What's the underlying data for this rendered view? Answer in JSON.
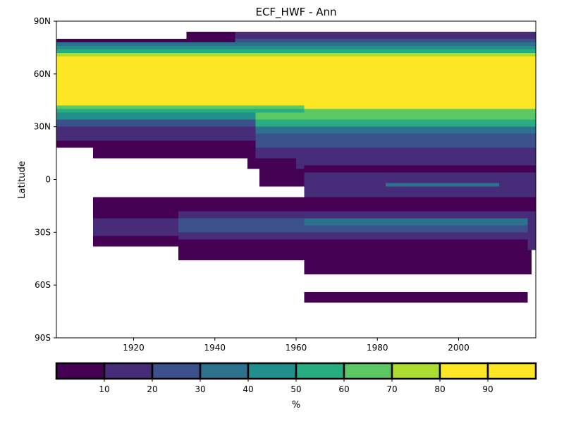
{
  "chart_data": {
    "type": "heatmap",
    "title": "ECF_HWF - Ann",
    "xlabel": "",
    "ylabel": "Latitude",
    "xlim": [
      1901,
      2019
    ],
    "ylim": [
      -90,
      90
    ],
    "x_ticks": [
      1920,
      1940,
      1960,
      1980,
      2000
    ],
    "x_tick_labels": [
      "1920",
      "1940",
      "1960",
      "1980",
      "2000"
    ],
    "y_ticks": [
      90,
      60,
      30,
      0,
      -30,
      -60,
      -90
    ],
    "y_tick_labels": [
      "90N",
      "60N",
      "30N",
      "0",
      "30S",
      "60S",
      "90S"
    ],
    "grid": false,
    "colorbar": {
      "label": "%",
      "range": [
        0,
        100
      ],
      "ticks": [
        10,
        20,
        30,
        40,
        50,
        60,
        70,
        80,
        90
      ],
      "tick_labels": [
        "10",
        "20",
        "30",
        "40",
        "50",
        "60",
        "70",
        "80",
        "90"
      ],
      "colors": [
        "#440154",
        "#472c7a",
        "#3b518b",
        "#2c718e",
        "#21908d",
        "#27ad81",
        "#5cc863",
        "#aadc32",
        "#fde725"
      ]
    },
    "cells": [
      {
        "x": [
          1901,
          2019
        ],
        "lat": [
          42,
          70
        ],
        "value": 95
      },
      {
        "x": [
          1901,
          2019
        ],
        "lat": [
          70,
          72
        ],
        "value": 75
      },
      {
        "x": [
          1901,
          2019
        ],
        "lat": [
          72,
          74
        ],
        "value": 55
      },
      {
        "x": [
          1901,
          2019
        ],
        "lat": [
          74,
          76
        ],
        "value": 45
      },
      {
        "x": [
          1901,
          2019
        ],
        "lat": [
          76,
          78
        ],
        "value": 35
      },
      {
        "x": [
          1901,
          1945
        ],
        "lat": [
          78,
          80
        ],
        "value": 5
      },
      {
        "x": [
          1945,
          2019
        ],
        "lat": [
          78,
          80
        ],
        "value": 25
      },
      {
        "x": [
          1945,
          2019
        ],
        "lat": [
          80,
          84
        ],
        "value": 15
      },
      {
        "x": [
          1933,
          1945
        ],
        "lat": [
          80,
          84
        ],
        "value": 5
      },
      {
        "x": [
          1901,
          1962
        ],
        "lat": [
          40,
          42
        ],
        "value": 65
      },
      {
        "x": [
          1962,
          2019
        ],
        "lat": [
          40,
          42
        ],
        "value": 85
      },
      {
        "x": [
          1901,
          1962
        ],
        "lat": [
          38,
          40
        ],
        "value": 55
      },
      {
        "x": [
          1962,
          2019
        ],
        "lat": [
          38,
          40
        ],
        "value": 65
      },
      {
        "x": [
          1901,
          1950
        ],
        "lat": [
          34,
          38
        ],
        "value": 45
      },
      {
        "x": [
          1950,
          2019
        ],
        "lat": [
          34,
          38
        ],
        "value": 65
      },
      {
        "x": [
          1901,
          1950
        ],
        "lat": [
          30,
          34
        ],
        "value": 25
      },
      {
        "x": [
          1950,
          2019
        ],
        "lat": [
          30,
          34
        ],
        "value": 55
      },
      {
        "x": [
          1901,
          1950
        ],
        "lat": [
          26,
          30
        ],
        "value": 15
      },
      {
        "x": [
          1950,
          2019
        ],
        "lat": [
          26,
          30
        ],
        "value": 35
      },
      {
        "x": [
          1901,
          1950
        ],
        "lat": [
          22,
          26
        ],
        "value": 15
      },
      {
        "x": [
          1950,
          2019
        ],
        "lat": [
          22,
          26
        ],
        "value": 25
      },
      {
        "x": [
          1901,
          1950
        ],
        "lat": [
          18,
          22
        ],
        "value": 5
      },
      {
        "x": [
          1950,
          2019
        ],
        "lat": [
          18,
          22
        ],
        "value": 25
      },
      {
        "x": [
          1910,
          1950
        ],
        "lat": [
          12,
          18
        ],
        "value": 5
      },
      {
        "x": [
          1950,
          2019
        ],
        "lat": [
          12,
          18
        ],
        "value": 15
      },
      {
        "x": [
          1948,
          1960
        ],
        "lat": [
          6,
          12
        ],
        "value": 5
      },
      {
        "x": [
          1960,
          2019
        ],
        "lat": [
          6,
          12
        ],
        "value": 15
      },
      {
        "x": [
          1951,
          1962
        ],
        "lat": [
          -4,
          6
        ],
        "value": 5
      },
      {
        "x": [
          1962,
          2019
        ],
        "lat": [
          4,
          8
        ],
        "value": 5
      },
      {
        "x": [
          1962,
          2019
        ],
        "lat": [
          -18,
          4
        ],
        "value": 15
      },
      {
        "x": [
          1982,
          2010
        ],
        "lat": [
          -4,
          -2
        ],
        "value": 35
      },
      {
        "x": [
          1910,
          2019
        ],
        "lat": [
          -10,
          -18
        ],
        "value": 5
      },
      {
        "x": [
          1910,
          1931
        ],
        "lat": [
          -18,
          -22
        ],
        "value": 5
      },
      {
        "x": [
          1910,
          1931
        ],
        "lat": [
          -22,
          -32
        ],
        "value": 15
      },
      {
        "x": [
          1910,
          1931
        ],
        "lat": [
          -32,
          -38
        ],
        "value": 5
      },
      {
        "x": [
          1931,
          1962
        ],
        "lat": [
          -18,
          -22
        ],
        "value": 15
      },
      {
        "x": [
          1931,
          1962
        ],
        "lat": [
          -22,
          -30
        ],
        "value": 25
      },
      {
        "x": [
          1931,
          1962
        ],
        "lat": [
          -30,
          -34
        ],
        "value": 15
      },
      {
        "x": [
          1931,
          1962
        ],
        "lat": [
          -34,
          -46
        ],
        "value": 5
      },
      {
        "x": [
          1962,
          2018
        ],
        "lat": [
          -18,
          -22
        ],
        "value": 15
      },
      {
        "x": [
          1962,
          2018
        ],
        "lat": [
          -22,
          -26
        ],
        "value": 35
      },
      {
        "x": [
          1962,
          2018
        ],
        "lat": [
          -26,
          -30
        ],
        "value": 25
      },
      {
        "x": [
          1962,
          2018
        ],
        "lat": [
          -30,
          -34
        ],
        "value": 15
      },
      {
        "x": [
          1962,
          2018
        ],
        "lat": [
          -34,
          -54
        ],
        "value": 5
      },
      {
        "x": [
          2017,
          2019
        ],
        "lat": [
          -18,
          -40
        ],
        "value": 15
      },
      {
        "x": [
          1962,
          2017
        ],
        "lat": [
          -64,
          -70
        ],
        "value": 5
      }
    ]
  }
}
